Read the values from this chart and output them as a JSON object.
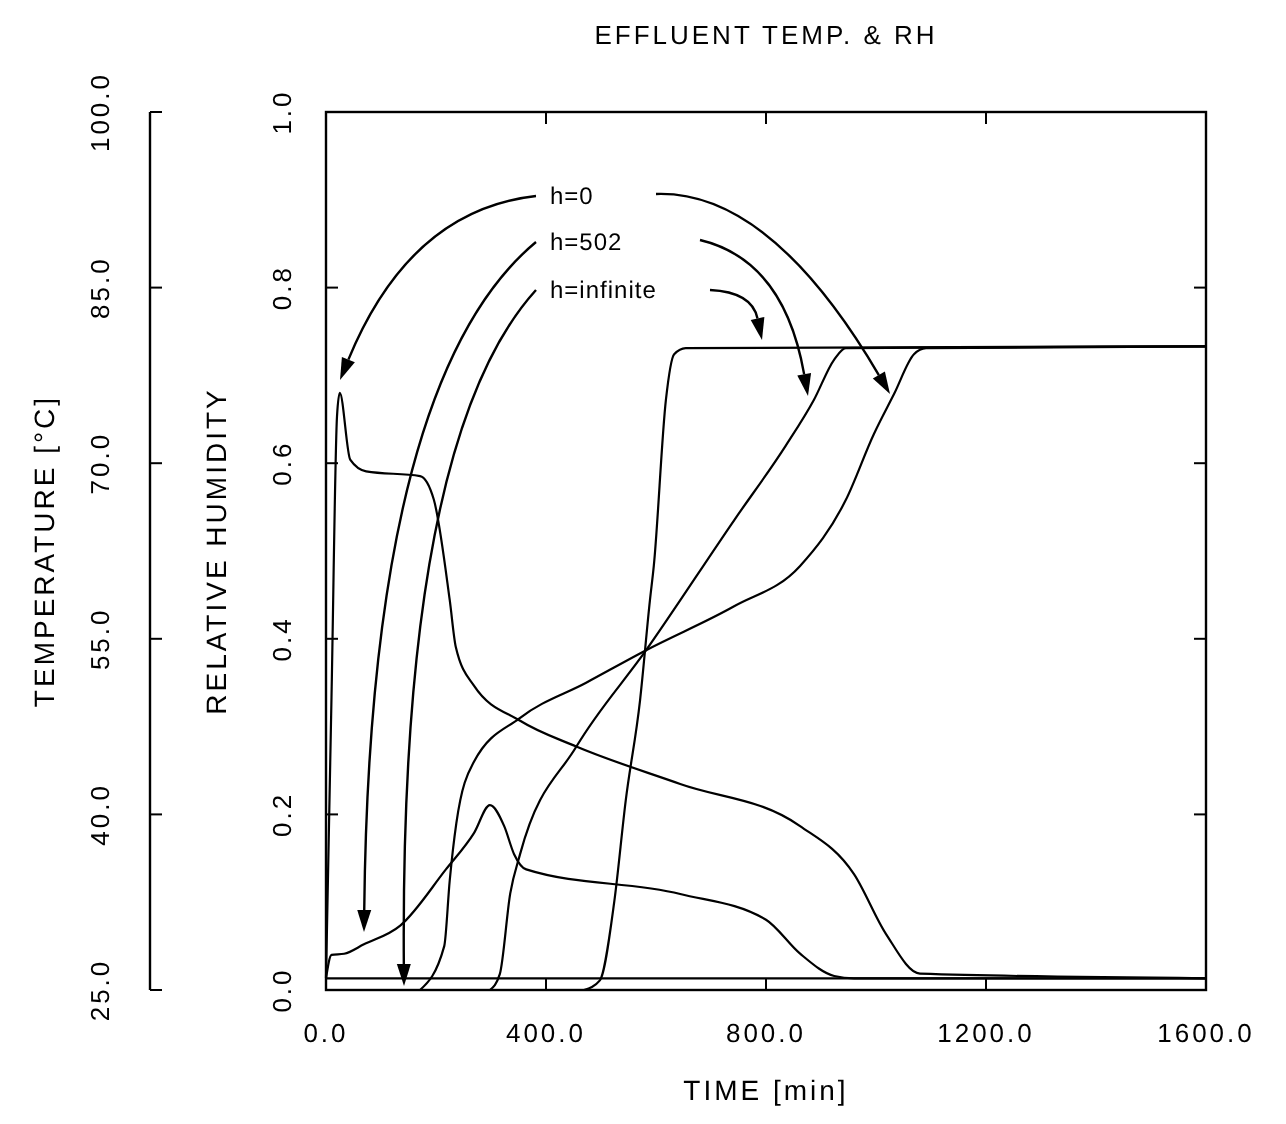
{
  "chart_data": {
    "type": "line",
    "title": "EFFLUENT TEMP. & RH",
    "xlabel": "TIME [min]",
    "ylabel": "RELATIVE HUMIDITY",
    "y2label": "TEMPERATURE [°C]",
    "xlim": [
      0,
      1600
    ],
    "xticks": [
      {
        "value": 0,
        "label": "0.0"
      },
      {
        "value": 400,
        "label": "400.0"
      },
      {
        "value": 800,
        "label": "800.0"
      },
      {
        "value": 1200,
        "label": "1200.0"
      },
      {
        "value": 1600,
        "label": "1600.0"
      }
    ],
    "ylim": [
      0,
      1
    ],
    "yticks": [
      {
        "value": 0,
        "label": "0.0"
      },
      {
        "value": 0.2,
        "label": "0.2"
      },
      {
        "value": 0.4,
        "label": "0.4"
      },
      {
        "value": 0.6,
        "label": "0.6"
      },
      {
        "value": 0.8,
        "label": "0.8"
      },
      {
        "value": 1,
        "label": "1.0"
      }
    ],
    "y2lim": [
      25,
      100
    ],
    "y2ticks": [
      {
        "value": 25,
        "label": "25.0"
      },
      {
        "value": 40,
        "label": "40.0"
      },
      {
        "value": 55,
        "label": "55.0"
      },
      {
        "value": 70,
        "label": "70.0"
      },
      {
        "value": 85,
        "label": "85.0"
      },
      {
        "value": 100,
        "label": "100.0"
      }
    ],
    "annotations": [
      "h=0",
      "h=502",
      "h=infinite"
    ],
    "series": [
      {
        "axis": "y2",
        "color": "#000000",
        "x": [
          0,
          10,
          20,
          25,
          44,
          73,
          171,
          196,
          225,
          236,
          269,
          353,
          455,
          644,
          862,
          960,
          1018,
          1080,
          1600
        ],
        "values": [
          26,
          50,
          74,
          76,
          70.3,
          69.3,
          68.9,
          66.9,
          58.3,
          54.3,
          51,
          48,
          45.8,
          42.6,
          39,
          34.9,
          29.8,
          26.4,
          26
        ]
      },
      {
        "axis": "y2",
        "color": "#000000",
        "x": [
          0,
          10,
          33,
          69,
          135,
          218,
          269,
          298,
          324,
          342,
          364,
          644,
          800,
          862,
          924,
          960,
          1600
        ],
        "values": [
          26,
          28,
          28.1,
          28.9,
          30.5,
          35.3,
          38.4,
          40.8,
          39,
          36.6,
          35.3,
          33.2,
          31,
          28.1,
          26.2,
          26,
          26
        ]
      },
      {
        "axis": "y2",
        "color": "#000000",
        "x": [
          0,
          1600
        ],
        "values": [
          26,
          26
        ]
      },
      {
        "axis": "y",
        "color": "#000000",
        "x": [
          171,
          215,
          225,
          237,
          269,
          353,
          473,
          582,
          742,
          862,
          945,
          996,
          1033,
          1069,
          1091,
          1600
        ],
        "values": [
          0,
          0.05,
          0.125,
          0.19,
          0.26,
          0.31,
          0.35,
          0.387,
          0.437,
          0.483,
          0.558,
          0.633,
          0.679,
          0.724,
          0.731,
          0.733
        ]
      },
      {
        "axis": "y",
        "color": "#000000",
        "x": [
          298,
          316,
          335,
          353,
          455,
          582,
          742,
          836,
          887,
          924,
          945,
          1600
        ],
        "values": [
          0,
          0.018,
          0.11,
          0.155,
          0.277,
          0.387,
          0.535,
          0.62,
          0.672,
          0.718,
          0.731,
          0.733
        ]
      },
      {
        "axis": "y",
        "color": "#000000",
        "x": [
          469,
          498,
          524,
          545,
          571,
          589,
          596,
          618,
          633,
          654,
          1600
        ],
        "values": [
          0,
          0.011,
          0.1,
          0.216,
          0.33,
          0.444,
          0.483,
          0.672,
          0.724,
          0.731,
          0.733
        ]
      }
    ]
  }
}
